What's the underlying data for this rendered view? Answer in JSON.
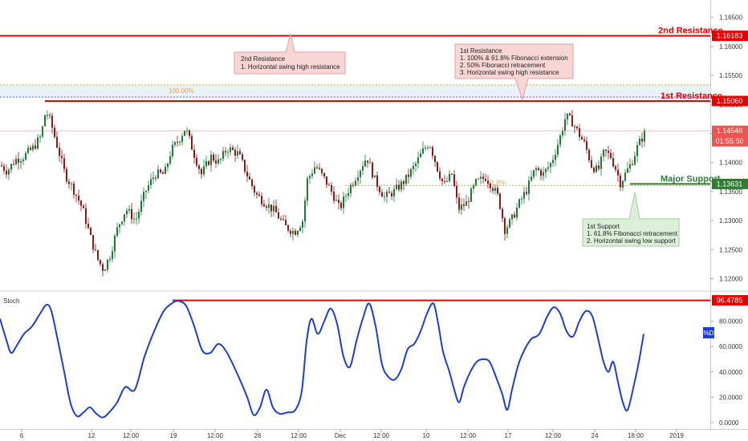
{
  "chart_data": [
    {
      "type": "candlestick",
      "title": "",
      "price_range": [
        1.118,
        1.168
      ],
      "y_ticks": [
        "1.16500",
        "1.16000",
        "1.15500",
        "1.15000",
        "1.14500",
        "1.14000",
        "1.13500",
        "1.13000",
        "1.12500",
        "1.12000"
      ],
      "current_price": "1.14546",
      "countdown": "01:55:50",
      "fib_100_label": "100.00%",
      "fib_61_label": "61.8%",
      "levels": [
        {
          "id": "second-resistance",
          "name": "2nd Resistance",
          "price": "1.16183",
          "value": 1.16183,
          "color": "#e60000"
        },
        {
          "id": "first-resistance",
          "name": "1st Resistance",
          "price": "1.15060",
          "value": 1.1506,
          "color": "#e60000"
        },
        {
          "id": "major-support",
          "name": "Major Support",
          "price": "1.13631",
          "value": 1.13631,
          "color": "#2e7d32"
        }
      ],
      "annotations": [
        {
          "id": "second-resistance-note",
          "lines": [
            "2nd Resistance",
            "1. Horizontal swing high resistance"
          ]
        },
        {
          "id": "first-resistance-note",
          "lines": [
            "1st Resistance",
            "1. 100% & 61.8% Fibonacci extension",
            "2. 50% Fibonacci retracement",
            "3. Horizontal swing high resistance"
          ]
        },
        {
          "id": "first-support-note",
          "lines": [
            "1st Support",
            "1. 61.8% Fibonacci retracement",
            "2. Horizontal swing low support"
          ]
        }
      ],
      "candle_anchors": [
        [
          0,
          1.1395
        ],
        [
          8,
          1.1385
        ],
        [
          18,
          1.1405
        ],
        [
          28,
          1.141
        ],
        [
          40,
          1.1425
        ],
        [
          50,
          1.1445
        ],
        [
          56,
          1.149
        ],
        [
          62,
          1.147
        ],
        [
          70,
          1.143
        ],
        [
          80,
          1.138
        ],
        [
          92,
          1.135
        ],
        [
          102,
          1.132
        ],
        [
          112,
          1.127
        ],
        [
          120,
          1.1235
        ],
        [
          128,
          1.1215
        ],
        [
          136,
          1.124
        ],
        [
          146,
          1.129
        ],
        [
          156,
          1.132
        ],
        [
          168,
          1.13
        ],
        [
          180,
          1.135
        ],
        [
          192,
          1.138
        ],
        [
          204,
          1.138
        ],
        [
          212,
          1.142
        ],
        [
          222,
          1.144
        ],
        [
          230,
          1.146
        ],
        [
          242,
          1.141
        ],
        [
          250,
          1.138
        ],
        [
          262,
          1.141
        ],
        [
          272,
          1.14
        ],
        [
          282,
          1.1425
        ],
        [
          296,
          1.1415
        ],
        [
          308,
          1.1375
        ],
        [
          318,
          1.1345
        ],
        [
          330,
          1.133
        ],
        [
          342,
          1.1315
        ],
        [
          354,
          1.129
        ],
        [
          366,
          1.128
        ],
        [
          376,
          1.13
        ],
        [
          382,
          1.137
        ],
        [
          392,
          1.1395
        ],
        [
          404,
          1.137
        ],
        [
          414,
          1.1345
        ],
        [
          422,
          1.132
        ],
        [
          432,
          1.135
        ],
        [
          444,
          1.138
        ],
        [
          456,
          1.141
        ],
        [
          466,
          1.137
        ],
        [
          478,
          1.134
        ],
        [
          490,
          1.135
        ],
        [
          504,
          1.137
        ],
        [
          516,
          1.1395
        ],
        [
          526,
          1.142
        ],
        [
          534,
          1.1435
        ],
        [
          544,
          1.139
        ],
        [
          552,
          1.136
        ],
        [
          562,
          1.138
        ],
        [
          570,
          1.132
        ],
        [
          580,
          1.133
        ],
        [
          592,
          1.1365
        ],
        [
          604,
          1.1375
        ],
        [
          612,
          1.136
        ],
        [
          620,
          1.134
        ],
        [
          628,
          1.1285
        ],
        [
          636,
          1.13
        ],
        [
          646,
          1.133
        ],
        [
          656,
          1.1355
        ],
        [
          666,
          1.139
        ],
        [
          676,
          1.138
        ],
        [
          686,
          1.14
        ],
        [
          696,
          1.144
        ],
        [
          704,
          1.148
        ],
        [
          712,
          1.147
        ],
        [
          720,
          1.145
        ],
        [
          728,
          1.143
        ],
        [
          736,
          1.1395
        ],
        [
          744,
          1.1385
        ],
        [
          752,
          1.142
        ],
        [
          760,
          1.141
        ],
        [
          766,
          1.139
        ],
        [
          772,
          1.1365
        ],
        [
          778,
          1.138
        ],
        [
          786,
          1.14
        ],
        [
          794,
          1.143
        ],
        [
          802,
          1.145
        ]
      ],
      "x_tick_labels": [
        "6",
        "12",
        "12:00",
        "19",
        "12:00",
        "26",
        "12:00",
        "Dec",
        "12:00",
        "10",
        "12:00",
        "17",
        "12:00",
        "24",
        "18:00",
        "2019"
      ],
      "indicator": {
        "name": "Stoch",
        "series_label": "%D",
        "range": [
          0,
          100
        ],
        "y_ticks": [
          "80.0000",
          "60.0000",
          "40.0000",
          "20.0000",
          "0.0000"
        ],
        "level": {
          "name": "96.4785",
          "value": 96.4785,
          "color": "#e60000"
        },
        "color": "#1e3ecf",
        "series": [
          [
            0,
            82
          ],
          [
            8,
            65
          ],
          [
            14,
            55
          ],
          [
            22,
            62
          ],
          [
            30,
            70
          ],
          [
            40,
            76
          ],
          [
            50,
            86
          ],
          [
            58,
            93
          ],
          [
            64,
            88
          ],
          [
            72,
            65
          ],
          [
            80,
            40
          ],
          [
            88,
            15
          ],
          [
            96,
            5
          ],
          [
            104,
            8
          ],
          [
            112,
            12
          ],
          [
            120,
            7
          ],
          [
            128,
            4
          ],
          [
            136,
            8
          ],
          [
            146,
            16
          ],
          [
            156,
            28
          ],
          [
            168,
            26
          ],
          [
            180,
            52
          ],
          [
            192,
            72
          ],
          [
            204,
            88
          ],
          [
            214,
            94
          ],
          [
            222,
            96
          ],
          [
            232,
            92
          ],
          [
            242,
            76
          ],
          [
            252,
            57
          ],
          [
            262,
            55
          ],
          [
            272,
            62
          ],
          [
            282,
            56
          ],
          [
            296,
            38
          ],
          [
            308,
            20
          ],
          [
            316,
            6
          ],
          [
            324,
            12
          ],
          [
            332,
            26
          ],
          [
            340,
            12
          ],
          [
            348,
            7
          ],
          [
            358,
            8
          ],
          [
            368,
            10
          ],
          [
            376,
            25
          ],
          [
            382,
            64
          ],
          [
            388,
            82
          ],
          [
            396,
            70
          ],
          [
            404,
            80
          ],
          [
            412,
            90
          ],
          [
            420,
            78
          ],
          [
            428,
            52
          ],
          [
            436,
            44
          ],
          [
            444,
            64
          ],
          [
            452,
            82
          ],
          [
            460,
            94
          ],
          [
            468,
            76
          ],
          [
            476,
            46
          ],
          [
            484,
            36
          ],
          [
            492,
            34
          ],
          [
            500,
            42
          ],
          [
            508,
            58
          ],
          [
            516,
            62
          ],
          [
            524,
            72
          ],
          [
            532,
            86
          ],
          [
            540,
            94
          ],
          [
            546,
            78
          ],
          [
            552,
            56
          ],
          [
            560,
            40
          ],
          [
            566,
            26
          ],
          [
            572,
            16
          ],
          [
            578,
            28
          ],
          [
            586,
            40
          ],
          [
            594,
            48
          ],
          [
            602,
            50
          ],
          [
            610,
            48
          ],
          [
            618,
            36
          ],
          [
            626,
            22
          ],
          [
            632,
            10
          ],
          [
            638,
            26
          ],
          [
            646,
            46
          ],
          [
            654,
            58
          ],
          [
            662,
            66
          ],
          [
            672,
            70
          ],
          [
            682,
            84
          ],
          [
            690,
            91
          ],
          [
            698,
            86
          ],
          [
            706,
            72
          ],
          [
            714,
            68
          ],
          [
            722,
            80
          ],
          [
            730,
            88
          ],
          [
            738,
            84
          ],
          [
            746,
            64
          ],
          [
            752,
            48
          ],
          [
            758,
            40
          ],
          [
            764,
            48
          ],
          [
            770,
            32
          ],
          [
            776,
            16
          ],
          [
            782,
            10
          ],
          [
            790,
            30
          ],
          [
            796,
            48
          ],
          [
            802,
            70
          ]
        ]
      }
    }
  ]
}
